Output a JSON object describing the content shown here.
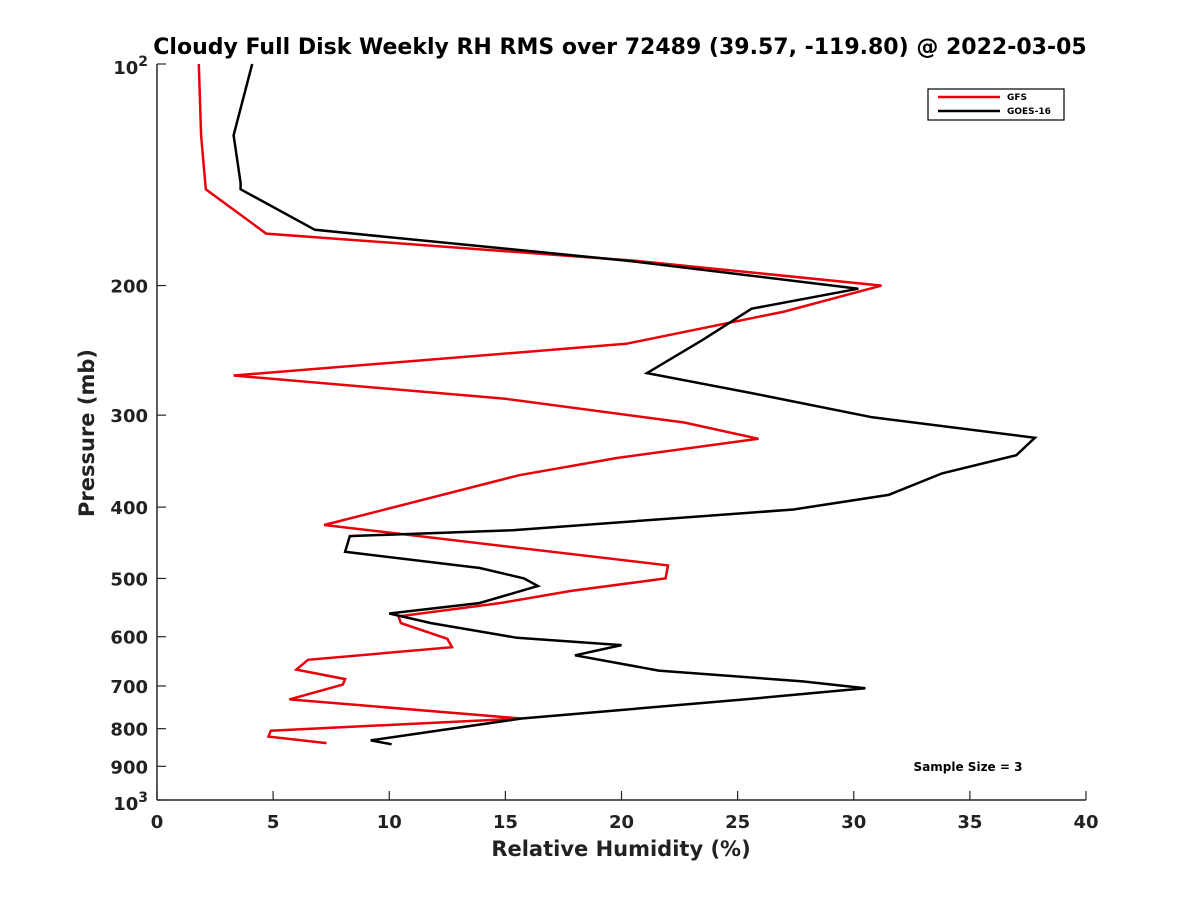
{
  "chart_data": {
    "type": "line",
    "title": "Cloudy Full Disk Weekly RH RMS over 72489 (39.57, -119.80) @ 2022-03-05",
    "xlabel": "Relative Humidity (%)",
    "ylabel": "Pressure (mb)",
    "xlim": [
      0,
      40
    ],
    "ylim": [
      1000,
      100
    ],
    "yscale": "log",
    "y_reversed": true,
    "x_ticks": [
      0,
      5,
      10,
      15,
      20,
      25,
      30,
      35,
      40
    ],
    "x_tick_labels": [
      "0",
      "5",
      "10",
      "15",
      "20",
      "25",
      "30",
      "35",
      "40"
    ],
    "y_ticks": [
      100,
      200,
      300,
      400,
      500,
      600,
      700,
      800,
      900,
      1000
    ],
    "y_tick_labels": [
      "10²",
      "200",
      "300",
      "400",
      "500",
      "600",
      "700",
      "800",
      "900",
      "10³"
    ],
    "grid": false,
    "legend_position": "top-right",
    "annotation": "Sample Size = 3",
    "series": [
      {
        "name": "GFS",
        "color": "#e8000b",
        "x": [
          1.8,
          1.9,
          2.1,
          4.7,
          20.5,
          31.2,
          27.0,
          20.2,
          3.3,
          15.0,
          22.7,
          25.9,
          19.8,
          15.6,
          7.2,
          22.0,
          21.9,
          17.8,
          14.8,
          10.4,
          10.5,
          12.5,
          12.7,
          6.5,
          6.0,
          8.1,
          8.0,
          5.7,
          15.7,
          4.9,
          4.8,
          7.3
        ],
        "y": [
          100,
          125,
          148,
          170,
          185,
          200,
          217,
          240,
          265,
          285,
          307,
          323,
          343,
          362,
          423,
          480,
          500,
          520,
          540,
          563,
          575,
          604,
          620,
          645,
          665,
          685,
          697,
          730,
          775,
          805,
          820,
          837
        ]
      },
      {
        "name": "GOES-16",
        "color": "#000000",
        "x": [
          4.1,
          3.3,
          3.6,
          3.6,
          6.8,
          20.2,
          30.2,
          25.6,
          23.5,
          21.1,
          25.6,
          30.8,
          37.8,
          37.0,
          33.8,
          31.5,
          27.4,
          15.3,
          8.3,
          8.1,
          13.9,
          15.8,
          16.4,
          13.9,
          10.0,
          11.8,
          15.5,
          20.0,
          18.0,
          21.6,
          27.8,
          30.5,
          25.3,
          15.7,
          11.5,
          9.2,
          10.1
        ],
        "y": [
          100,
          125,
          145,
          148,
          168,
          185,
          202,
          215,
          237,
          263,
          280,
          302,
          322,
          340,
          360,
          385,
          403,
          430,
          438,
          460,
          484,
          500,
          512,
          540,
          558,
          575,
          602,
          616,
          636,
          667,
          690,
          705,
          730,
          775,
          810,
          830,
          840
        ]
      }
    ]
  }
}
